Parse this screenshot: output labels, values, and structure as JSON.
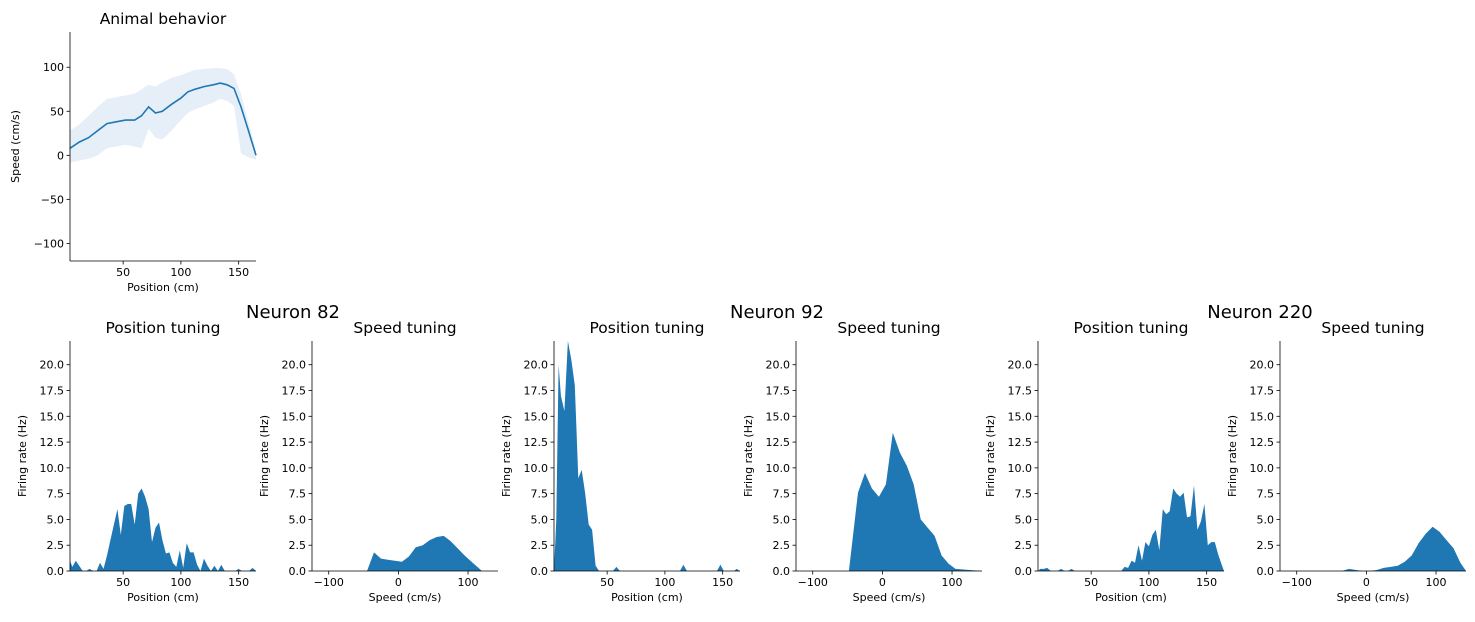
{
  "figure": {
    "accent_color": "#1f77b4",
    "band_color": "#e6eff8",
    "neuron_titles": [
      "Neuron 82",
      "Neuron 92",
      "Neuron 220"
    ]
  },
  "chart_data": [
    {
      "id": "behavior",
      "type": "line",
      "title": "Animal behavior",
      "xlabel": "Position (cm)",
      "ylabel": "Speed (cm/s)",
      "xlim": [
        4,
        165
      ],
      "ylim": [
        -120,
        140
      ],
      "xticks": [
        50,
        100,
        150
      ],
      "yticks": [
        -100,
        -50,
        0,
        50,
        100
      ],
      "x": [
        4,
        12,
        20,
        28,
        36,
        44,
        52,
        60,
        66,
        72,
        78,
        84,
        92,
        100,
        106,
        112,
        120,
        128,
        134,
        140,
        146,
        152,
        158,
        165
      ],
      "y": [
        8,
        15,
        20,
        28,
        36,
        38,
        40,
        40,
        45,
        55,
        48,
        50,
        58,
        65,
        72,
        75,
        78,
        80,
        82,
        80,
        76,
        55,
        30,
        0
      ],
      "upper": [
        28,
        35,
        45,
        55,
        64,
        66,
        68,
        70,
        75,
        80,
        78,
        83,
        88,
        91,
        94,
        97,
        98,
        99,
        99,
        98,
        92,
        70,
        40,
        5
      ],
      "lower": [
        -8,
        -6,
        -4,
        0,
        8,
        10,
        12,
        10,
        8,
        30,
        20,
        18,
        28,
        40,
        48,
        52,
        56,
        60,
        64,
        62,
        56,
        2,
        -2,
        -5
      ]
    },
    {
      "id": "n82-position",
      "type": "area",
      "title": "Position tuning",
      "xlabel": "Position (cm)",
      "ylabel": "Firing rate (Hz)",
      "xlim": [
        4,
        165
      ],
      "ylim": [
        0,
        22.3
      ],
      "xticks": [
        50,
        100,
        150
      ],
      "yticks": [
        0.0,
        2.5,
        5.0,
        7.5,
        10.0,
        12.5,
        15.0,
        17.5,
        20.0
      ],
      "x": [
        4,
        6,
        9,
        12,
        15,
        18,
        21,
        24,
        27,
        30,
        33,
        36,
        39,
        42,
        45,
        48,
        51,
        54,
        57,
        60,
        63,
        66,
        69,
        72,
        75,
        78,
        81,
        84,
        87,
        90,
        93,
        96,
        99,
        102,
        105,
        108,
        111,
        114,
        117,
        120,
        123,
        126,
        129,
        132,
        135,
        138,
        141,
        144,
        147,
        150,
        153,
        156,
        159,
        162,
        165
      ],
      "y": [
        1.0,
        0.4,
        1.0,
        0.5,
        0.0,
        0.0,
        0.2,
        0.0,
        0.0,
        0.8,
        0.2,
        1.5,
        3.0,
        4.5,
        6.0,
        3.5,
        6.3,
        6.5,
        6.5,
        4.5,
        7.5,
        8.0,
        7.2,
        6.0,
        2.8,
        4.2,
        4.7,
        3.0,
        1.7,
        1.8,
        0.8,
        0.4,
        2.0,
        0.3,
        2.7,
        1.8,
        1.8,
        0.6,
        0.0,
        1.2,
        0.5,
        0.0,
        0.5,
        0.0,
        0.6,
        0.0,
        0.0,
        0.0,
        0.0,
        0.2,
        0.0,
        0.0,
        0.0,
        0.3,
        0.0
      ]
    },
    {
      "id": "n82-speed",
      "type": "area",
      "title": "Speed tuning",
      "xlabel": "Speed (cm/s)",
      "ylabel": "Firing rate (Hz)",
      "xlim": [
        -124,
        143
      ],
      "ylim": [
        0,
        22.3
      ],
      "xticks": [
        -100,
        0,
        100
      ],
      "yticks": [
        0.0,
        2.5,
        5.0,
        7.5,
        10.0,
        12.5,
        15.0,
        17.5,
        20.0
      ],
      "x": [
        -124,
        -45,
        -35,
        -25,
        -15,
        -5,
        5,
        15,
        25,
        35,
        45,
        55,
        65,
        75,
        85,
        95,
        105,
        115,
        120,
        143
      ],
      "y": [
        0,
        0,
        1.8,
        1.2,
        1.1,
        1.0,
        0.9,
        1.4,
        2.3,
        2.5,
        3.0,
        3.3,
        3.4,
        2.9,
        2.2,
        1.5,
        0.9,
        0.3,
        0,
        0
      ]
    },
    {
      "id": "n92-position",
      "type": "area",
      "title": "Position tuning",
      "xlabel": "Position (cm)",
      "ylabel": "Firing rate (Hz)",
      "xlim": [
        4,
        165
      ],
      "ylim": [
        0,
        22.3
      ],
      "xticks": [
        50,
        100,
        150
      ],
      "yticks": [
        0.0,
        2.5,
        5.0,
        7.5,
        10.0,
        12.5,
        15.0,
        17.5,
        20.0
      ],
      "x": [
        4,
        6,
        8,
        10,
        13,
        16,
        19,
        22,
        25,
        28,
        31,
        34,
        37,
        40,
        43,
        46,
        49,
        52,
        55,
        58,
        61,
        64,
        110,
        113,
        116,
        119,
        145,
        148,
        151,
        160,
        162,
        165
      ],
      "y": [
        0.0,
        5.0,
        20.0,
        17.0,
        15.5,
        22.3,
        20.5,
        18.0,
        9.0,
        9.8,
        7.5,
        4.5,
        4.0,
        0.5,
        0.0,
        0.0,
        0.0,
        0.0,
        0.0,
        0.4,
        0.0,
        0.0,
        0.0,
        0.0,
        0.6,
        0.0,
        0.0,
        0.6,
        0.0,
        0.0,
        0.2,
        0.0
      ]
    },
    {
      "id": "n92-speed",
      "type": "area",
      "title": "Speed tuning",
      "xlabel": "Speed (cm/s)",
      "ylabel": "Firing rate (Hz)",
      "xlim": [
        -124,
        143
      ],
      "ylim": [
        0,
        22.3
      ],
      "xticks": [
        -100,
        0,
        100
      ],
      "yticks": [
        0.0,
        2.5,
        5.0,
        7.5,
        10.0,
        12.5,
        15.0,
        17.5,
        20.0
      ],
      "x": [
        -124,
        -48,
        -35,
        -25,
        -15,
        -5,
        5,
        15,
        25,
        35,
        45,
        55,
        65,
        75,
        85,
        95,
        105,
        143
      ],
      "y": [
        0,
        0,
        7.6,
        9.5,
        8.0,
        7.2,
        8.4,
        13.4,
        11.5,
        10.2,
        8.4,
        5.0,
        4.2,
        3.4,
        1.5,
        0.7,
        0.2,
        0
      ]
    },
    {
      "id": "n220-position",
      "type": "area",
      "title": "Position tuning",
      "xlabel": "Position (cm)",
      "ylabel": "Firing rate (Hz)",
      "xlim": [
        4,
        165
      ],
      "ylim": [
        0,
        22.3
      ],
      "xticks": [
        50,
        100,
        150
      ],
      "yticks": [
        0.0,
        2.5,
        5.0,
        7.5,
        10.0,
        12.5,
        15.0,
        17.5,
        20.0
      ],
      "x": [
        4,
        6,
        9,
        12,
        15,
        18,
        21,
        24,
        27,
        30,
        33,
        36,
        39,
        42,
        70,
        76,
        79,
        82,
        85,
        88,
        91,
        94,
        97,
        100,
        103,
        106,
        109,
        112,
        115,
        118,
        121,
        124,
        127,
        130,
        133,
        136,
        139,
        142,
        145,
        148,
        151,
        154,
        157,
        160,
        163,
        165
      ],
      "y": [
        0.0,
        0.2,
        0.2,
        0.3,
        0.0,
        0.0,
        0.0,
        0.2,
        0.0,
        0.0,
        0.2,
        0.0,
        0.0,
        0.0,
        0.0,
        0.0,
        0.4,
        0.3,
        1.0,
        0.8,
        2.5,
        1.0,
        2.8,
        2.4,
        3.5,
        4.0,
        2.0,
        6.0,
        5.5,
        5.8,
        8.0,
        7.5,
        7.2,
        7.6,
        5.2,
        5.3,
        8.3,
        4.0,
        4.8,
        6.5,
        2.5,
        2.8,
        2.8,
        1.6,
        0.6,
        0.0
      ]
    },
    {
      "id": "n220-speed",
      "type": "area",
      "title": "Speed tuning",
      "xlabel": "Speed (cm/s)",
      "ylabel": "Firing rate (Hz)",
      "xlim": [
        -124,
        143
      ],
      "ylim": [
        0,
        22.3
      ],
      "xticks": [
        -100,
        0,
        100
      ],
      "yticks": [
        0.0,
        2.5,
        5.0,
        7.5,
        10.0,
        12.5,
        15.0,
        17.5,
        20.0
      ],
      "x": [
        -124,
        -45,
        -35,
        -25,
        -15,
        -5,
        5,
        15,
        25,
        35,
        45,
        55,
        65,
        75,
        85,
        95,
        105,
        115,
        125,
        135,
        143
      ],
      "y": [
        0,
        0,
        0.0,
        0.2,
        0.1,
        0.0,
        0.0,
        0.1,
        0.3,
        0.4,
        0.5,
        0.9,
        1.5,
        2.7,
        3.6,
        4.3,
        3.8,
        3.0,
        2.2,
        0.8,
        0
      ]
    }
  ]
}
